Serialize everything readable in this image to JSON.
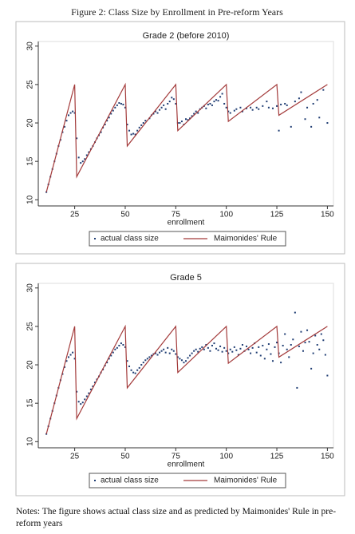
{
  "title": "Figure 2: Class Size by Enrollment in Pre-reform Years",
  "notes": "Notes: The figure shows actual class size and as predicted by Maimonides' Rule in pre-reform years",
  "chart_data": [
    {
      "type": "scatter",
      "title": "Grade 2 (before 2010)",
      "xlabel": "enrollment",
      "xlim": [
        7,
        153
      ],
      "ylim": [
        9.2,
        30.6
      ],
      "xticks": [
        25,
        50,
        75,
        100,
        125,
        150
      ],
      "yticks": [
        10,
        15,
        20,
        25,
        30
      ],
      "series": [
        {
          "name": "actual class size",
          "type": "scatter",
          "color": "#1f3d73",
          "x": [
            11,
            12,
            13,
            14,
            15,
            16,
            17,
            18,
            19,
            20,
            21,
            22,
            23,
            24,
            25,
            26,
            27,
            28,
            29,
            30,
            31,
            32,
            33,
            34,
            35,
            36,
            37,
            38,
            39,
            40,
            41,
            42,
            43,
            44,
            45,
            46,
            47,
            48,
            49,
            50,
            51,
            52,
            53,
            54,
            55,
            56,
            57,
            58,
            59,
            60,
            62,
            63,
            64,
            65,
            66,
            67,
            68,
            69,
            70,
            71,
            72,
            73,
            74,
            75,
            76,
            77,
            78,
            79,
            80,
            81,
            82,
            83,
            84,
            85,
            86,
            87,
            88,
            89,
            90,
            91,
            92,
            93,
            94,
            95,
            96,
            97,
            98,
            99,
            100,
            101,
            102,
            104,
            105,
            107,
            108,
            110,
            112,
            113,
            115,
            116,
            118,
            120,
            121,
            123,
            125,
            126,
            127,
            129,
            130,
            132,
            134,
            136,
            137,
            139,
            140,
            142,
            143,
            145,
            146,
            148,
            150
          ],
          "values": [
            11,
            12,
            13,
            14,
            15,
            16,
            17,
            17.8,
            18.8,
            19.5,
            20.3,
            21,
            21.3,
            21.5,
            21.3,
            18,
            15.5,
            14.8,
            15,
            15.3,
            15.8,
            16.2,
            16.6,
            17,
            17.5,
            18,
            18.4,
            18.8,
            19.4,
            19.8,
            20.3,
            20.7,
            21.2,
            21.6,
            22,
            22.3,
            22.6,
            22.5,
            22.4,
            22,
            19.8,
            19,
            18.5,
            18.6,
            18.5,
            19,
            19.4,
            19.7,
            20,
            20.3,
            20.6,
            21,
            21.2,
            21.5,
            21.3,
            21.7,
            22,
            22.3,
            21.8,
            22.5,
            22.8,
            23.3,
            23.1,
            22.5,
            20,
            20,
            20.2,
            19.8,
            20.5,
            20.4,
            20.6,
            20.9,
            21.2,
            21.5,
            21.3,
            21.8,
            22,
            22.2,
            21.9,
            22.4,
            22.5,
            22.3,
            22.8,
            23,
            22.9,
            23.4,
            23.8,
            22.5,
            22,
            21.5,
            21.3,
            21.6,
            21.8,
            22,
            21.5,
            21.9,
            22,
            21.7,
            22,
            21.8,
            22.2,
            22.8,
            22,
            21.9,
            22.2,
            19,
            22.4,
            22.5,
            22.3,
            19.5,
            22.8,
            23.2,
            24,
            20.5,
            22,
            19.5,
            22.5,
            23,
            20.7,
            24.3,
            20
          ]
        },
        {
          "name": "Maimonides' Rule",
          "type": "line",
          "color": "#a33a3a",
          "x": [
            11,
            25,
            26,
            50,
            51,
            75,
            76,
            100,
            101,
            125,
            126,
            150
          ],
          "values": [
            11,
            25,
            13,
            25,
            17,
            25,
            19,
            25,
            20.2,
            25,
            21,
            25
          ]
        }
      ]
    },
    {
      "type": "scatter",
      "title": "Grade 5",
      "xlabel": "enrollment",
      "xlim": [
        7,
        153
      ],
      "ylim": [
        9.2,
        30.6
      ],
      "xticks": [
        25,
        50,
        75,
        100,
        125,
        150
      ],
      "yticks": [
        10,
        15,
        20,
        25,
        30
      ],
      "series": [
        {
          "name": "actual class size",
          "type": "scatter",
          "color": "#1f3d73",
          "x": [
            11,
            12,
            13,
            14,
            15,
            16,
            17,
            18,
            19,
            20,
            21,
            22,
            23,
            24,
            25,
            26,
            27,
            28,
            29,
            30,
            31,
            32,
            33,
            34,
            35,
            36,
            37,
            38,
            39,
            40,
            41,
            42,
            43,
            44,
            45,
            46,
            47,
            48,
            49,
            50,
            51,
            52,
            53,
            54,
            55,
            56,
            57,
            58,
            59,
            60,
            61,
            62,
            63,
            64,
            65,
            66,
            67,
            68,
            69,
            70,
            71,
            72,
            73,
            74,
            75,
            76,
            77,
            78,
            79,
            80,
            81,
            82,
            83,
            84,
            85,
            86,
            87,
            88,
            89,
            90,
            91,
            92,
            93,
            94,
            95,
            96,
            97,
            98,
            99,
            100,
            101,
            102,
            103,
            104,
            105,
            106,
            107,
            108,
            109,
            110,
            111,
            112,
            113,
            114,
            115,
            116,
            117,
            118,
            119,
            120,
            121,
            122,
            123,
            124,
            125,
            126,
            127,
            128,
            129,
            130,
            131,
            132,
            133,
            134,
            135,
            136,
            137,
            138,
            139,
            140,
            141,
            142,
            143,
            144,
            145,
            146,
            147,
            148,
            149,
            150
          ],
          "values": [
            11,
            12,
            13,
            14,
            15,
            16,
            17,
            18,
            18.8,
            19.7,
            20.5,
            21,
            21.3,
            21.6,
            20.8,
            16.5,
            15.2,
            14.9,
            15.1,
            15.5,
            15.9,
            16.3,
            16.8,
            17.2,
            17.7,
            18.1,
            18.5,
            19,
            19.4,
            19.9,
            20.3,
            20.8,
            21.2,
            21.6,
            22,
            22.2,
            22.5,
            22.8,
            22.6,
            22.3,
            20.5,
            19.8,
            19.3,
            19,
            18.9,
            19.3,
            19.6,
            20,
            20.3,
            20.6,
            20.8,
            21,
            21.2,
            21.4,
            21.5,
            21.3,
            21.6,
            21.8,
            22,
            21.6,
            22.2,
            21.5,
            22,
            21.8,
            21.4,
            21,
            20.8,
            20.6,
            20.3,
            20.5,
            20.9,
            21.2,
            21.5,
            21.8,
            22,
            21.7,
            22.1,
            22.3,
            22,
            22.6,
            22.2,
            21.8,
            22.5,
            22.8,
            22.1,
            21.9,
            22.4,
            21.7,
            22.2,
            21.8,
            21.5,
            22,
            21.7,
            22.3,
            21.9,
            21.3,
            22.1,
            22.6,
            21.8,
            22.4,
            22,
            21.5,
            22.2,
            22.8,
            21.6,
            22.3,
            21.2,
            22.5,
            20.8,
            22,
            22.7,
            21.4,
            20.5,
            22.3,
            22.9,
            21.5,
            20.3,
            22.5,
            24,
            22,
            21,
            22.6,
            23.3,
            26.8,
            17,
            22.4,
            24.3,
            21.8,
            22.9,
            24.5,
            23,
            19.5,
            21.5,
            23.8,
            22.6,
            22,
            24,
            23.2,
            21.3,
            18.6
          ]
        },
        {
          "name": "Maimonides' Rule",
          "type": "line",
          "color": "#a33a3a",
          "x": [
            11,
            25,
            26,
            50,
            51,
            75,
            76,
            100,
            101,
            125,
            126,
            150
          ],
          "values": [
            11,
            25,
            13,
            25,
            17,
            25,
            19,
            25,
            20.2,
            25,
            21,
            25
          ]
        }
      ]
    }
  ]
}
